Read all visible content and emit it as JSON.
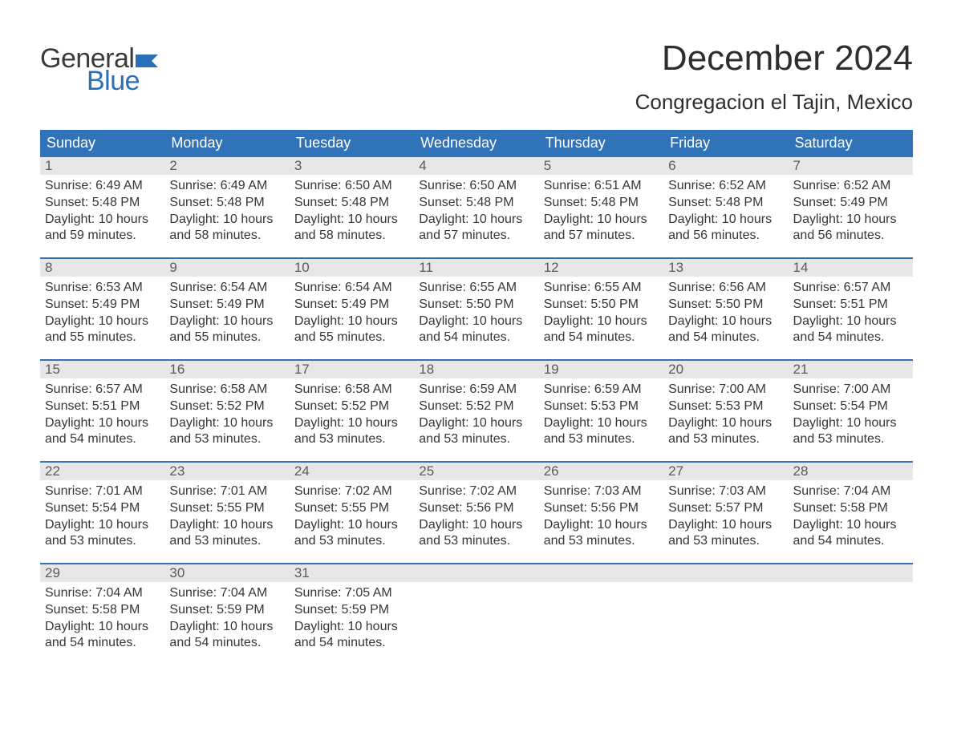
{
  "logo": {
    "word1": "General",
    "word2": "Blue"
  },
  "title": {
    "month": "December 2024",
    "location": "Congregacion el Tajin, Mexico"
  },
  "colors": {
    "header_bg": "#3173b8",
    "daynum_bg": "#e7e7e7",
    "week_border": "#3173b8",
    "text": "#363636",
    "logo_flag": "#2b6fb6"
  },
  "dayLabels": [
    "Sunday",
    "Monday",
    "Tuesday",
    "Wednesday",
    "Thursday",
    "Friday",
    "Saturday"
  ],
  "labels": {
    "sunrise": "Sunrise:",
    "sunset": "Sunset:",
    "daylight": "Daylight:"
  },
  "weeks": [
    [
      {
        "n": "1",
        "sunrise": "6:49 AM",
        "sunset": "5:48 PM",
        "daylight1": "10 hours",
        "daylight2": "and 59 minutes."
      },
      {
        "n": "2",
        "sunrise": "6:49 AM",
        "sunset": "5:48 PM",
        "daylight1": "10 hours",
        "daylight2": "and 58 minutes."
      },
      {
        "n": "3",
        "sunrise": "6:50 AM",
        "sunset": "5:48 PM",
        "daylight1": "10 hours",
        "daylight2": "and 58 minutes."
      },
      {
        "n": "4",
        "sunrise": "6:50 AM",
        "sunset": "5:48 PM",
        "daylight1": "10 hours",
        "daylight2": "and 57 minutes."
      },
      {
        "n": "5",
        "sunrise": "6:51 AM",
        "sunset": "5:48 PM",
        "daylight1": "10 hours",
        "daylight2": "and 57 minutes."
      },
      {
        "n": "6",
        "sunrise": "6:52 AM",
        "sunset": "5:48 PM",
        "daylight1": "10 hours",
        "daylight2": "and 56 minutes."
      },
      {
        "n": "7",
        "sunrise": "6:52 AM",
        "sunset": "5:49 PM",
        "daylight1": "10 hours",
        "daylight2": "and 56 minutes."
      }
    ],
    [
      {
        "n": "8",
        "sunrise": "6:53 AM",
        "sunset": "5:49 PM",
        "daylight1": "10 hours",
        "daylight2": "and 55 minutes."
      },
      {
        "n": "9",
        "sunrise": "6:54 AM",
        "sunset": "5:49 PM",
        "daylight1": "10 hours",
        "daylight2": "and 55 minutes."
      },
      {
        "n": "10",
        "sunrise": "6:54 AM",
        "sunset": "5:49 PM",
        "daylight1": "10 hours",
        "daylight2": "and 55 minutes."
      },
      {
        "n": "11",
        "sunrise": "6:55 AM",
        "sunset": "5:50 PM",
        "daylight1": "10 hours",
        "daylight2": "and 54 minutes."
      },
      {
        "n": "12",
        "sunrise": "6:55 AM",
        "sunset": "5:50 PM",
        "daylight1": "10 hours",
        "daylight2": "and 54 minutes."
      },
      {
        "n": "13",
        "sunrise": "6:56 AM",
        "sunset": "5:50 PM",
        "daylight1": "10 hours",
        "daylight2": "and 54 minutes."
      },
      {
        "n": "14",
        "sunrise": "6:57 AM",
        "sunset": "5:51 PM",
        "daylight1": "10 hours",
        "daylight2": "and 54 minutes."
      }
    ],
    [
      {
        "n": "15",
        "sunrise": "6:57 AM",
        "sunset": "5:51 PM",
        "daylight1": "10 hours",
        "daylight2": "and 54 minutes."
      },
      {
        "n": "16",
        "sunrise": "6:58 AM",
        "sunset": "5:52 PM",
        "daylight1": "10 hours",
        "daylight2": "and 53 minutes."
      },
      {
        "n": "17",
        "sunrise": "6:58 AM",
        "sunset": "5:52 PM",
        "daylight1": "10 hours",
        "daylight2": "and 53 minutes."
      },
      {
        "n": "18",
        "sunrise": "6:59 AM",
        "sunset": "5:52 PM",
        "daylight1": "10 hours",
        "daylight2": "and 53 minutes."
      },
      {
        "n": "19",
        "sunrise": "6:59 AM",
        "sunset": "5:53 PM",
        "daylight1": "10 hours",
        "daylight2": "and 53 minutes."
      },
      {
        "n": "20",
        "sunrise": "7:00 AM",
        "sunset": "5:53 PM",
        "daylight1": "10 hours",
        "daylight2": "and 53 minutes."
      },
      {
        "n": "21",
        "sunrise": "7:00 AM",
        "sunset": "5:54 PM",
        "daylight1": "10 hours",
        "daylight2": "and 53 minutes."
      }
    ],
    [
      {
        "n": "22",
        "sunrise": "7:01 AM",
        "sunset": "5:54 PM",
        "daylight1": "10 hours",
        "daylight2": "and 53 minutes."
      },
      {
        "n": "23",
        "sunrise": "7:01 AM",
        "sunset": "5:55 PM",
        "daylight1": "10 hours",
        "daylight2": "and 53 minutes."
      },
      {
        "n": "24",
        "sunrise": "7:02 AM",
        "sunset": "5:55 PM",
        "daylight1": "10 hours",
        "daylight2": "and 53 minutes."
      },
      {
        "n": "25",
        "sunrise": "7:02 AM",
        "sunset": "5:56 PM",
        "daylight1": "10 hours",
        "daylight2": "and 53 minutes."
      },
      {
        "n": "26",
        "sunrise": "7:03 AM",
        "sunset": "5:56 PM",
        "daylight1": "10 hours",
        "daylight2": "and 53 minutes."
      },
      {
        "n": "27",
        "sunrise": "7:03 AM",
        "sunset": "5:57 PM",
        "daylight1": "10 hours",
        "daylight2": "and 53 minutes."
      },
      {
        "n": "28",
        "sunrise": "7:04 AM",
        "sunset": "5:58 PM",
        "daylight1": "10 hours",
        "daylight2": "and 54 minutes."
      }
    ],
    [
      {
        "n": "29",
        "sunrise": "7:04 AM",
        "sunset": "5:58 PM",
        "daylight1": "10 hours",
        "daylight2": "and 54 minutes."
      },
      {
        "n": "30",
        "sunrise": "7:04 AM",
        "sunset": "5:59 PM",
        "daylight1": "10 hours",
        "daylight2": "and 54 minutes."
      },
      {
        "n": "31",
        "sunrise": "7:05 AM",
        "sunset": "5:59 PM",
        "daylight1": "10 hours",
        "daylight2": "and 54 minutes."
      },
      null,
      null,
      null,
      null
    ]
  ]
}
